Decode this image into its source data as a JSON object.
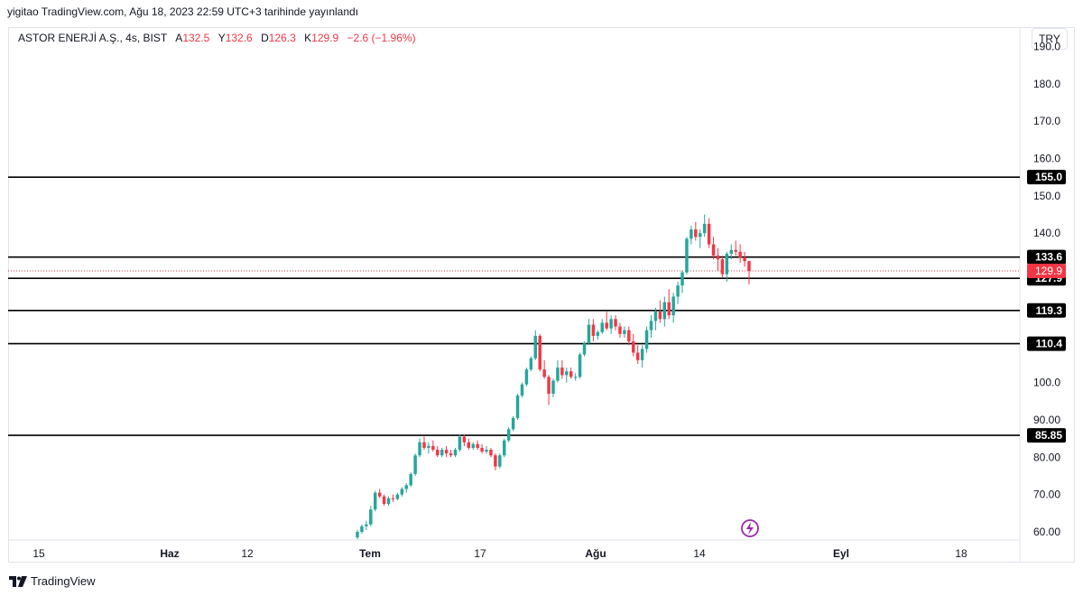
{
  "header": {
    "published": "yigitao TradingView.com, Ağu 18, 2023 22:59 UTC+3 tarihinde yayınlandı"
  },
  "legend": {
    "symbol": "ASTOR ENERJİ A.Ş., 4s, BIST",
    "open_label": "A",
    "open": "132.5",
    "high_label": "Y",
    "high": "132.6",
    "low_label": "D",
    "low": "126.3",
    "close_label": "K",
    "close": "129.9",
    "change": "−2.6 (−1.96%)"
  },
  "currency_button": "TRY",
  "footer": {
    "brand": "TradingView"
  },
  "icons": {
    "lightning": "lightning-icon",
    "logo": "tradingview-logo-icon"
  },
  "colors": {
    "up": "#26a69a",
    "down": "#f23645",
    "levels": "#000000",
    "last_price": "#f23645"
  },
  "chart_data": {
    "type": "candlestick",
    "y_ticks": [
      "60.00",
      "70.00",
      "80.00",
      "90.00",
      "100.0",
      "110.0",
      "120.0",
      "130.0",
      "140.0",
      "150.0",
      "160.0",
      "170.0",
      "180.0",
      "190.0"
    ],
    "x_ticks": [
      "15",
      "Haz",
      "12",
      "Tem",
      "17",
      "Ağu",
      "14",
      "Eyl",
      "18"
    ],
    "ylim": [
      56,
      192
    ],
    "horizontal_levels": [
      155.0,
      133.6,
      127.9,
      119.3,
      110.4,
      85.85
    ],
    "level_labels": [
      "155.0",
      "133.6",
      "127.9",
      "119.3",
      "110.4",
      "85.85"
    ],
    "last_price": 129.9,
    "last_price_label": "129.9",
    "candles": [
      [
        58.5,
        60.5,
        58,
        60
      ],
      [
        60,
        62,
        59.5,
        61.5
      ],
      [
        61.5,
        63,
        60.5,
        62
      ],
      [
        62,
        67,
        61.5,
        66
      ],
      [
        66,
        71,
        65.5,
        70.5
      ],
      [
        70.5,
        71.5,
        69,
        69.5
      ],
      [
        69.5,
        70,
        67,
        67.5
      ],
      [
        67.5,
        69.5,
        67,
        69
      ],
      [
        69,
        70,
        68,
        68.8
      ],
      [
        68.8,
        70.5,
        68.5,
        70
      ],
      [
        70,
        72,
        69.5,
        71.5
      ],
      [
        71.5,
        73,
        70.5,
        72.5
      ],
      [
        72.5,
        76,
        72,
        75.5
      ],
      [
        75.5,
        81,
        75,
        80.5
      ],
      [
        80.5,
        85,
        80,
        84
      ],
      [
        84,
        85.5,
        82,
        82.5
      ],
      [
        82.5,
        84,
        81,
        83
      ],
      [
        83,
        84.5,
        81.5,
        82
      ],
      [
        82,
        83,
        80,
        80.5
      ],
      [
        80.5,
        82.5,
        80,
        82
      ],
      [
        82,
        83,
        80,
        81
      ],
      [
        81,
        82,
        80,
        80.5
      ],
      [
        80.5,
        82.5,
        80,
        82
      ],
      [
        82,
        86,
        81.5,
        85.5
      ],
      [
        85.5,
        86,
        83,
        84
      ],
      [
        84,
        85,
        82,
        82.5
      ],
      [
        82.5,
        84,
        82,
        83.5
      ],
      [
        83.5,
        84.5,
        82,
        82.5
      ],
      [
        82.5,
        83.5,
        81,
        81.5
      ],
      [
        81.5,
        83,
        81,
        82
      ],
      [
        82,
        82.5,
        80,
        80.5
      ],
      [
        80.5,
        81,
        76.5,
        77.5
      ],
      [
        77.5,
        81,
        77,
        80.5
      ],
      [
        80.5,
        85,
        80,
        84.5
      ],
      [
        84.5,
        88,
        84,
        87.5
      ],
      [
        87.5,
        91,
        87,
        90.5
      ],
      [
        90.5,
        97,
        90,
        96.5
      ],
      [
        96.5,
        100,
        96,
        99.5
      ],
      [
        99.5,
        104,
        99,
        103.5
      ],
      [
        103.5,
        107,
        103,
        106.5
      ],
      [
        106.5,
        114,
        106,
        112.5
      ],
      [
        112.5,
        113,
        103,
        103.5
      ],
      [
        103.5,
        106,
        101,
        101.5
      ],
      [
        101.5,
        102,
        94,
        97
      ],
      [
        97,
        101,
        96,
        100.5
      ],
      [
        100.5,
        106,
        100,
        104
      ],
      [
        104,
        106,
        101,
        102
      ],
      [
        102,
        104,
        100,
        103
      ],
      [
        103,
        104,
        101,
        101.5
      ],
      [
        101.5,
        102.5,
        100.5,
        101.5
      ],
      [
        101.5,
        108,
        101,
        107.5
      ],
      [
        107.5,
        111,
        107,
        110.5
      ],
      [
        110.5,
        117,
        110,
        115.5
      ],
      [
        115.5,
        117,
        111,
        112.5
      ],
      [
        112.5,
        114,
        111.5,
        113.5
      ],
      [
        113.5,
        117,
        113,
        116
      ],
      [
        116,
        119,
        114,
        114.5
      ],
      [
        114.5,
        118,
        113,
        117
      ],
      [
        117,
        118,
        114,
        115
      ],
      [
        115,
        116,
        112,
        113
      ],
      [
        113,
        115,
        112,
        114
      ],
      [
        114,
        115,
        110,
        111
      ],
      [
        111,
        113,
        107,
        108
      ],
      [
        108,
        110,
        105,
        106
      ],
      [
        106,
        110,
        104,
        109
      ],
      [
        109,
        115,
        108,
        114
      ],
      [
        114,
        118,
        112,
        116.5
      ],
      [
        116.5,
        120,
        114,
        119
      ],
      [
        119,
        122,
        116,
        117
      ],
      [
        117,
        123,
        115,
        121.5
      ],
      [
        121.5,
        125,
        117,
        118
      ],
      [
        118,
        124,
        116,
        123
      ],
      [
        123,
        127,
        121,
        126
      ],
      [
        126,
        130,
        124,
        129.5
      ],
      [
        129.5,
        139,
        129,
        138.5
      ],
      [
        138.5,
        142,
        137,
        141
      ],
      [
        141,
        143,
        138,
        139
      ],
      [
        139,
        141,
        136,
        140
      ],
      [
        140,
        145,
        139,
        142.5
      ],
      [
        142.5,
        144,
        136,
        137
      ],
      [
        137,
        139,
        133,
        134
      ],
      [
        134,
        136,
        130,
        133
      ],
      [
        133,
        134,
        128,
        129
      ],
      [
        129,
        135,
        127,
        134.5
      ],
      [
        134.5,
        137,
        133,
        135.5
      ],
      [
        135.5,
        138,
        134,
        135
      ],
      [
        135,
        137,
        132,
        133.5
      ],
      [
        133.5,
        135,
        131,
        132.5
      ],
      [
        132.5,
        132.6,
        126.3,
        129.9
      ]
    ]
  }
}
